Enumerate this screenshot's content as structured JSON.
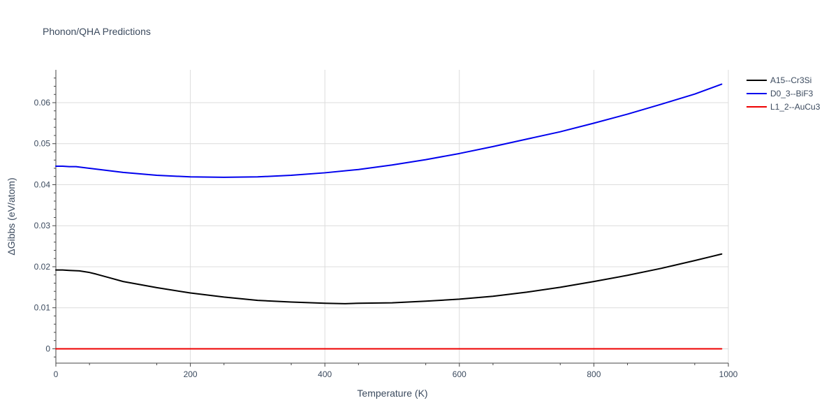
{
  "chart_data": {
    "type": "line",
    "title": "Phonon/QHA Predictions",
    "xlabel": "Temperature (K)",
    "ylabel": "ΔGibbs (eV/atom)",
    "xlim": [
      0,
      1000
    ],
    "ylim": [
      -0.0035,
      0.068
    ],
    "x_ticks": [
      0,
      200,
      400,
      600,
      800,
      1000
    ],
    "y_ticks": [
      0,
      0.01,
      0.02,
      0.03,
      0.04,
      0.05,
      0.06
    ],
    "x_tick_labels": [
      "0",
      "200",
      "400",
      "600",
      "800",
      "1000"
    ],
    "y_tick_labels": [
      "0",
      "0.01",
      "0.02",
      "0.03",
      "0.04",
      "0.05",
      "0.06"
    ],
    "grid": true,
    "legend_position": "top-right",
    "series": [
      {
        "name": "A15--Cr3Si",
        "color": "#000000",
        "x": [
          0,
          10,
          20,
          35,
          50,
          60,
          80,
          100,
          150,
          200,
          250,
          300,
          350,
          400,
          430,
          450,
          500,
          550,
          600,
          650,
          700,
          750,
          800,
          850,
          900,
          950,
          990
        ],
        "y": [
          0.0192,
          0.0192,
          0.0191,
          0.019,
          0.0186,
          0.0182,
          0.0173,
          0.0164,
          0.0149,
          0.0136,
          0.0126,
          0.0118,
          0.0114,
          0.0111,
          0.011,
          0.0111,
          0.0112,
          0.0116,
          0.0121,
          0.0128,
          0.0138,
          0.015,
          0.0164,
          0.0179,
          0.0196,
          0.0215,
          0.0231
        ]
      },
      {
        "name": "D0_3--BiF3",
        "color": "#0000ee",
        "x": [
          0,
          10,
          20,
          30,
          50,
          100,
          150,
          200,
          250,
          300,
          350,
          400,
          450,
          500,
          550,
          600,
          650,
          700,
          750,
          800,
          850,
          900,
          950,
          990
        ],
        "y": [
          0.0445,
          0.0445,
          0.0444,
          0.0444,
          0.044,
          0.043,
          0.0423,
          0.0419,
          0.0418,
          0.0419,
          0.0423,
          0.0429,
          0.0437,
          0.0448,
          0.0461,
          0.0476,
          0.0493,
          0.0511,
          0.0529,
          0.055,
          0.0572,
          0.0596,
          0.0621,
          0.0645
        ]
      },
      {
        "name": "L1_2--AuCu3",
        "color": "#ee0000",
        "x": [
          0,
          990
        ],
        "y": [
          0,
          0
        ]
      }
    ]
  }
}
